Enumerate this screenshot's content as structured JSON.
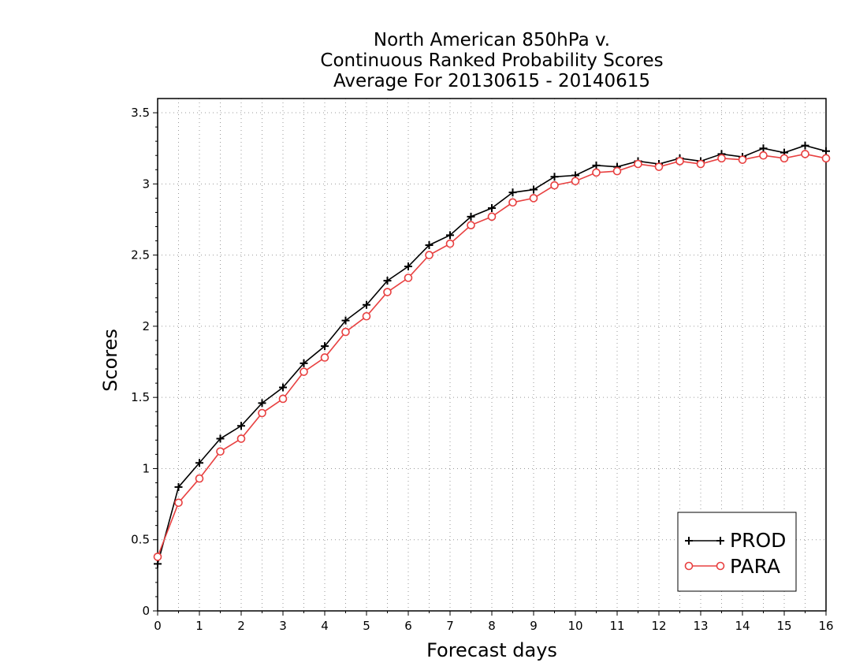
{
  "chart_data": {
    "type": "line",
    "title": [
      "North American 850hPa v.",
      "Continuous Ranked Probability Scores",
      "Average For 20130615 - 20140615"
    ],
    "xlabel": "Forecast days",
    "ylabel": "Scores",
    "xlim": [
      0,
      16
    ],
    "ylim": [
      0,
      3.6
    ],
    "xticks": [
      "0",
      "1",
      "2",
      "3",
      "4",
      "5",
      "6",
      "7",
      "8",
      "9",
      "10",
      "11",
      "12",
      "13",
      "14",
      "15",
      "16"
    ],
    "yticks": [
      "0",
      "0.5",
      "1",
      "1.5",
      "2",
      "2.5",
      "3",
      "3.5"
    ],
    "grid": true,
    "legend_position": "bottom-right",
    "x": [
      0,
      0.5,
      1,
      1.5,
      2,
      2.5,
      3,
      3.5,
      4,
      4.5,
      5,
      5.5,
      6,
      6.5,
      7,
      7.5,
      8,
      8.5,
      9,
      9.5,
      10,
      10.5,
      11,
      11.5,
      12,
      12.5,
      13,
      13.5,
      14,
      14.5,
      15,
      15.5,
      16
    ],
    "series": [
      {
        "name": "PROD",
        "color": "#000000",
        "marker": "plus",
        "values": [
          0.33,
          0.87,
          1.04,
          1.21,
          1.3,
          1.46,
          1.57,
          1.74,
          1.86,
          2.04,
          2.15,
          2.32,
          2.42,
          2.57,
          2.64,
          2.77,
          2.83,
          2.94,
          2.96,
          3.05,
          3.06,
          3.13,
          3.12,
          3.16,
          3.14,
          3.18,
          3.16,
          3.21,
          3.19,
          3.25,
          3.22,
          3.27,
          3.23
        ]
      },
      {
        "name": "PARA",
        "color": "#e84040",
        "marker": "circle",
        "values": [
          0.38,
          0.76,
          0.93,
          1.12,
          1.21,
          1.39,
          1.49,
          1.68,
          1.78,
          1.96,
          2.07,
          2.24,
          2.34,
          2.5,
          2.58,
          2.71,
          2.77,
          2.87,
          2.9,
          2.99,
          3.02,
          3.08,
          3.09,
          3.14,
          3.12,
          3.16,
          3.14,
          3.18,
          3.17,
          3.2,
          3.18,
          3.21,
          3.18
        ]
      }
    ]
  }
}
